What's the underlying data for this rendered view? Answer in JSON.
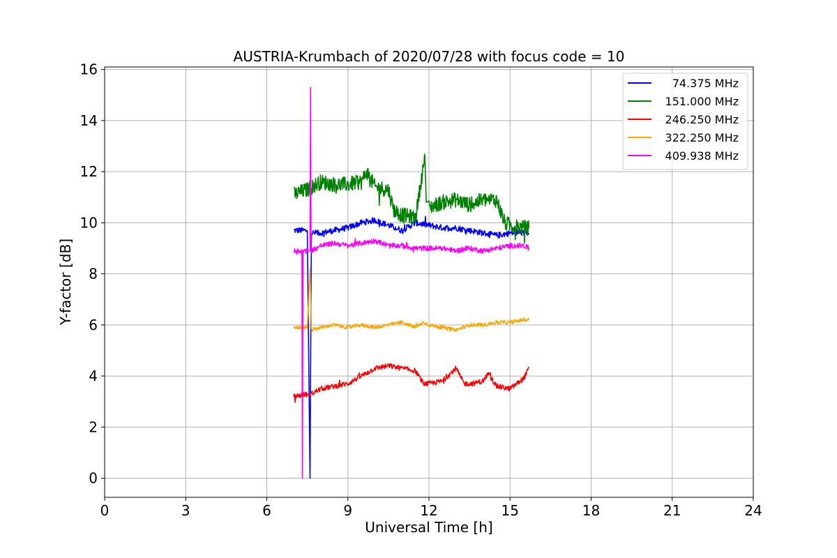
{
  "chart_data": {
    "type": "line",
    "title": "AUSTRIA-Krumbach of 2020/07/28 with focus code = 10",
    "xlabel": "Universal Time [h]",
    "ylabel": "Y-factor [dB]",
    "xlim": [
      0,
      24
    ],
    "ylim": [
      -0.75,
      16.1
    ],
    "xticks": [
      0,
      3,
      6,
      9,
      12,
      15,
      18,
      21,
      24
    ],
    "yticks": [
      0,
      2,
      4,
      6,
      8,
      10,
      12,
      14,
      16
    ],
    "grid": true,
    "legend_position": "top-right",
    "series": [
      {
        "name": "74.375 MHz",
        "color": "#0000ff",
        "x": [
          7.0,
          7.5,
          7.6,
          7.65,
          8.0,
          8.5,
          9.0,
          9.5,
          10.0,
          10.5,
          11.0,
          11.5,
          12.0,
          12.5,
          13.0,
          13.5,
          14.0,
          14.5,
          15.0,
          15.5,
          15.7
        ],
        "y": [
          9.7,
          9.7,
          0.0,
          9.6,
          9.6,
          9.7,
          9.8,
          10.0,
          10.1,
          9.9,
          9.7,
          10.0,
          9.9,
          9.8,
          9.8,
          9.7,
          9.6,
          9.5,
          9.6,
          9.6,
          9.6
        ],
        "noise": 0.12
      },
      {
        "name": "151.000 MHz",
        "color": "#008000",
        "x": [
          7.0,
          7.5,
          8.0,
          8.5,
          9.0,
          9.5,
          9.7,
          10.0,
          10.5,
          10.7,
          11.0,
          11.5,
          11.85,
          11.9,
          12.0,
          12.5,
          13.0,
          13.5,
          14.0,
          14.5,
          14.8,
          15.0,
          15.5,
          15.7
        ],
        "y": [
          11.1,
          11.3,
          11.6,
          11.5,
          11.5,
          11.6,
          12.0,
          11.4,
          11.3,
          10.5,
          10.3,
          10.2,
          12.6,
          10.8,
          10.6,
          10.8,
          10.9,
          10.7,
          10.9,
          10.9,
          10.0,
          9.9,
          9.8,
          9.8
        ],
        "noise": 0.3
      },
      {
        "name": "246.250 MHz",
        "color": "#ff0000",
        "x": [
          7.0,
          7.5,
          7.6,
          7.65,
          8.0,
          8.5,
          9.0,
          9.5,
          10.0,
          10.5,
          11.0,
          11.5,
          11.8,
          12.0,
          12.5,
          12.8,
          13.0,
          13.3,
          13.6,
          14.0,
          14.2,
          14.5,
          15.0,
          15.5,
          15.7
        ],
        "y": [
          3.2,
          3.3,
          3.2,
          3.3,
          3.5,
          3.6,
          3.7,
          4.0,
          4.3,
          4.4,
          4.3,
          4.2,
          3.7,
          3.7,
          3.8,
          4.1,
          4.3,
          3.7,
          3.7,
          3.8,
          4.1,
          3.6,
          3.5,
          3.9,
          4.3
        ],
        "noise": 0.1
      },
      {
        "name": "322.250 MHz",
        "color": "#ffa500",
        "x": [
          7.0,
          7.5,
          7.6,
          7.65,
          8.0,
          8.5,
          9.0,
          9.5,
          10.0,
          10.5,
          11.0,
          11.5,
          11.8,
          12.0,
          12.5,
          13.0,
          13.5,
          14.0,
          14.5,
          15.0,
          15.5,
          15.7
        ],
        "y": [
          5.9,
          5.9,
          8.2,
          5.8,
          5.9,
          6.0,
          5.9,
          6.0,
          5.9,
          6.0,
          6.1,
          5.9,
          6.1,
          6.0,
          5.9,
          5.8,
          6.0,
          6.0,
          6.1,
          6.1,
          6.2,
          6.2
        ],
        "noise": 0.07
      },
      {
        "name": "409.938 MHz",
        "color": "#ff00ff",
        "x": [
          7.0,
          7.3,
          7.32,
          7.34,
          7.5,
          7.6,
          7.62,
          7.64,
          8.0,
          8.5,
          9.0,
          9.5,
          10.0,
          10.5,
          11.0,
          11.5,
          12.0,
          12.5,
          13.0,
          13.5,
          14.0,
          14.5,
          15.0,
          15.5,
          15.7
        ],
        "y": [
          8.9,
          8.9,
          0.0,
          8.9,
          8.9,
          8.9,
          15.3,
          8.9,
          9.1,
          9.2,
          9.1,
          9.2,
          9.3,
          9.1,
          9.1,
          9.0,
          9.0,
          9.0,
          8.9,
          9.0,
          8.9,
          9.0,
          9.1,
          9.1,
          9.0
        ],
        "noise": 0.1
      }
    ]
  }
}
